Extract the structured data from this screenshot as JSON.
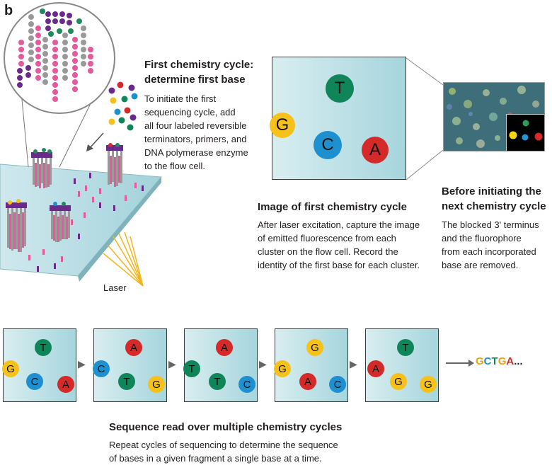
{
  "panel_letter": "b",
  "first_cycle": {
    "heading": [
      "First chemistry cycle:",
      "determine first base"
    ],
    "body": [
      "To initiate the first",
      "sequencing cycle, add",
      "all four labeled reversible",
      "terminators, primers, and",
      "DNA polymerase enzyme",
      "to the flow cell."
    ]
  },
  "laser_label": "Laser",
  "image_section": {
    "heading": "Image of first chemistry cycle",
    "body": [
      "After laser excitation, capture the image",
      "of emitted fluorescence from each",
      "cluster on the flow cell. Record the",
      "identity of the first base for each cluster."
    ]
  },
  "before_section": {
    "heading": [
      "Before initiating the",
      "next chemistry cycle"
    ],
    "body": [
      "The blocked 3' terminus",
      "and the fluorophore",
      "from each incorporated",
      "base are removed."
    ]
  },
  "big_card_bases": [
    "T",
    "G",
    "C",
    "A"
  ],
  "cycles": [
    [
      "T",
      "G",
      "C",
      "A"
    ],
    [
      "A",
      "C",
      "T",
      "G"
    ],
    [
      "A",
      "T",
      "T",
      "C"
    ],
    [
      "G",
      "G",
      "A",
      "C"
    ],
    [
      "T",
      "A",
      "G",
      "G"
    ]
  ],
  "sequence_result": [
    "G",
    "C",
    "T",
    "G",
    "A",
    "..."
  ],
  "sequence_colors": [
    "#e8a317",
    "#1e90cf",
    "#11855a",
    "#e8a317",
    "#d42a2a",
    "#231f20"
  ],
  "bottom_section": {
    "heading": "Sequence read over multiple chemistry cycles",
    "body": [
      "Repeat cycles of sequencing to determine the sequence",
      "of bases in a given fragment a single base at a time."
    ]
  },
  "colors": {
    "G": "#f7c11b",
    "T": "#11855a",
    "C": "#1e90cf",
    "A": "#d42a2a",
    "dna_pink": "#e45a9b",
    "dna_purple": "#6a2a8a"
  }
}
